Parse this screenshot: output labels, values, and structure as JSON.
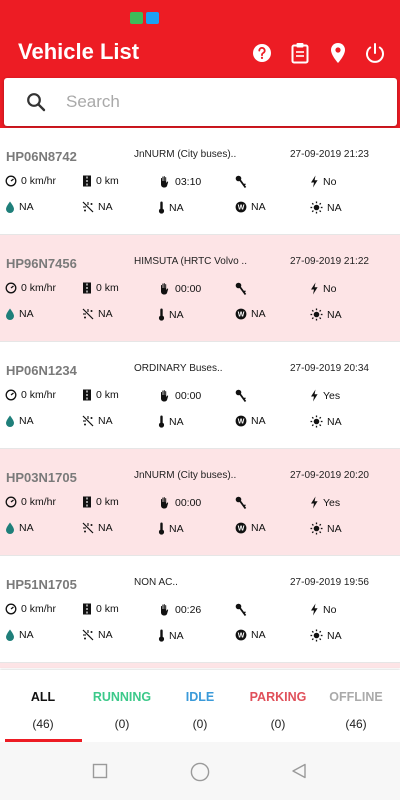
{
  "app": {
    "title": "Vehicle List",
    "accent_color": "#ed1c24",
    "highlight_row_color": "#fde4e6"
  },
  "status_bar": {
    "icons": [
      "message-icon",
      "twitter-icon"
    ]
  },
  "app_bar": {
    "actions": [
      "help-icon",
      "clipboard-icon",
      "location-pin-icon",
      "power-icon"
    ]
  },
  "search": {
    "placeholder": "Search",
    "value": ""
  },
  "vehicles": [
    {
      "reg": "HP06N8742",
      "route": "JnNURM (City buses)..",
      "datetime": "27-09-2019 21:23",
      "speed": "0 km/hr",
      "distance": "0 km",
      "idle_time": "03:10",
      "ignition": "",
      "power": "No",
      "fuel": "NA",
      "ac": "NA",
      "temperature": "NA",
      "weight": "NA",
      "light": "NA",
      "highlight": false
    },
    {
      "reg": "HP96N7456",
      "route": "HIMSUTA (HRTC Volvo ..",
      "datetime": "27-09-2019 21:22",
      "speed": "0 km/hr",
      "distance": "0 km",
      "idle_time": "00:00",
      "ignition": "",
      "power": "No",
      "fuel": "NA",
      "ac": "NA",
      "temperature": "NA",
      "weight": "NA",
      "light": "NA",
      "highlight": true
    },
    {
      "reg": "HP06N1234",
      "route": "ORDINARY Buses..",
      "datetime": "27-09-2019 20:34",
      "speed": "0 km/hr",
      "distance": "0 km",
      "idle_time": "00:00",
      "ignition": "",
      "power": "Yes",
      "fuel": "NA",
      "ac": "NA",
      "temperature": "NA",
      "weight": "NA",
      "light": "NA",
      "highlight": false
    },
    {
      "reg": "HP03N1705",
      "route": "JnNURM (City buses)..",
      "datetime": "27-09-2019 20:20",
      "speed": "0 km/hr",
      "distance": "0 km",
      "idle_time": "00:00",
      "ignition": "",
      "power": "Yes",
      "fuel": "NA",
      "ac": "NA",
      "temperature": "NA",
      "weight": "NA",
      "light": "NA",
      "highlight": true
    },
    {
      "reg": "HP51N1705",
      "route": "NON AC..",
      "datetime": "27-09-2019 19:56",
      "speed": "0 km/hr",
      "distance": "0 km",
      "idle_time": "00:26",
      "ignition": "",
      "power": "No",
      "fuel": "NA",
      "ac": "NA",
      "temperature": "NA",
      "weight": "NA",
      "light": "NA",
      "highlight": false
    }
  ],
  "tabs": [
    {
      "label": "ALL",
      "count": "(46)",
      "color": "#111111",
      "active": true
    },
    {
      "label": "RUNNING",
      "count": "(0)",
      "color": "#3cc98a",
      "active": false
    },
    {
      "label": "IDLE",
      "count": "(0)",
      "color": "#3a9ad9",
      "active": false
    },
    {
      "label": "PARKING",
      "count": "(0)",
      "color": "#e0505a",
      "active": false
    },
    {
      "label": "OFFLINE",
      "count": "(46)",
      "color": "#aaaaaa",
      "active": false
    }
  ],
  "nav": {
    "buttons": [
      "recents-icon",
      "home-icon",
      "back-icon"
    ]
  }
}
